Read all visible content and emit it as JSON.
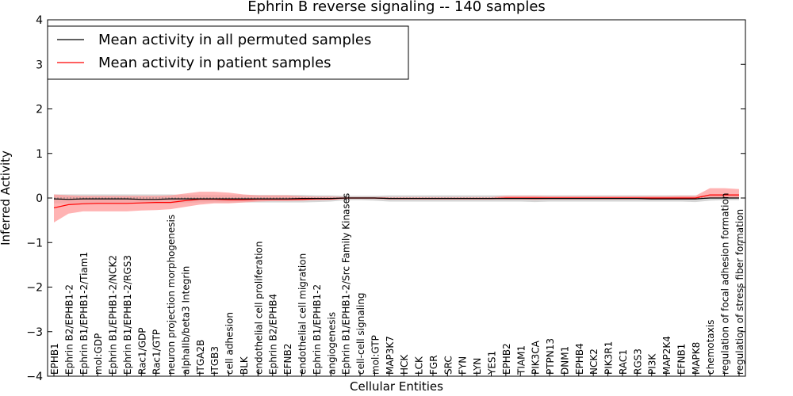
{
  "chart_data": {
    "type": "line",
    "title": "Ephrin B reverse signaling -- 140 samples",
    "xlabel": "Cellular Entities",
    "ylabel": "Inferred Activity",
    "ylim": [
      -4,
      4
    ],
    "yticks": [
      -4,
      -3,
      -2,
      -1,
      0,
      1,
      2,
      3,
      4
    ],
    "ytick_labels": [
      "−4",
      "−3",
      "−2",
      "−1",
      "0",
      "1",
      "2",
      "3",
      "4"
    ],
    "grid": false,
    "legend_position": "top-left",
    "categories": [
      "EPHB1",
      "Ephrin B2/EPHB1-2",
      "Ephrin B1/EPHB1-2/Tiam1",
      "mol:GDP",
      "Ephrin B1/EPHB1-2/NCK2",
      "Ephrin B1/EPHB1-2/RGS3",
      "Rac1/GDP",
      "Rac1/GTP",
      "neuron projection morphogenesis",
      "alphaIIb/beta3 Integrin",
      "ITGA2B",
      "ITGB3",
      "cell adhesion",
      "BLK",
      "endothelial cell proliferation",
      "Ephrin B2/EPHB4",
      "EFNB2",
      "endothelial cell migration",
      "Ephrin B1/EPHB1-2",
      "angiogenesis",
      "Ephrin B1/EPHB1-2/Src Family Kinases",
      "cell-cell signaling",
      "mol:GTP",
      "MAP3K7",
      "HCK",
      "LCK",
      "FGR",
      "SRC",
      "FYN",
      "LYN",
      "YES1",
      "EPHB2",
      "TIAM1",
      "PIK3CA",
      "PTPN13",
      "DNM1",
      "EPHB4",
      "NCK2",
      "PIK3R1",
      "RAC1",
      "RGS3",
      "PI3K",
      "MAP2K4",
      "EFNB1",
      "MAPK8",
      "chemotaxis",
      "regulation of focal adhesion formation",
      "regulation of stress fiber formation"
    ],
    "series": [
      {
        "name": "Mean activity in all permuted samples",
        "color": "#000000",
        "values": [
          -0.02,
          -0.03,
          -0.02,
          -0.02,
          -0.02,
          -0.02,
          -0.03,
          -0.03,
          -0.02,
          -0.02,
          -0.02,
          -0.02,
          -0.02,
          -0.02,
          -0.02,
          -0.02,
          -0.02,
          -0.01,
          -0.01,
          -0.01,
          0.0,
          0.0,
          0.0,
          -0.01,
          -0.01,
          -0.01,
          -0.01,
          -0.01,
          -0.01,
          -0.01,
          -0.01,
          -0.01,
          -0.01,
          -0.01,
          -0.01,
          -0.01,
          -0.01,
          -0.01,
          -0.01,
          -0.01,
          -0.01,
          -0.02,
          -0.02,
          -0.02,
          -0.02,
          0.0,
          0.0,
          0.0
        ],
        "band_lower": [
          -0.12,
          -0.12,
          -0.12,
          -0.12,
          -0.12,
          -0.12,
          -0.12,
          -0.12,
          -0.12,
          -0.11,
          -0.1,
          -0.1,
          -0.1,
          -0.1,
          -0.1,
          -0.1,
          -0.1,
          -0.1,
          -0.09,
          -0.08,
          -0.05,
          -0.05,
          -0.06,
          -0.08,
          -0.08,
          -0.08,
          -0.08,
          -0.08,
          -0.08,
          -0.08,
          -0.08,
          -0.08,
          -0.08,
          -0.09,
          -0.08,
          -0.08,
          -0.08,
          -0.08,
          -0.08,
          -0.08,
          -0.08,
          -0.08,
          -0.08,
          -0.08,
          -0.09,
          -0.06,
          -0.05,
          -0.05
        ],
        "band_upper": [
          0.08,
          0.08,
          0.08,
          0.08,
          0.08,
          0.08,
          0.08,
          0.08,
          0.08,
          0.07,
          0.07,
          0.07,
          0.07,
          0.07,
          0.07,
          0.07,
          0.07,
          0.07,
          0.06,
          0.06,
          0.05,
          0.05,
          0.05,
          0.06,
          0.06,
          0.06,
          0.06,
          0.06,
          0.06,
          0.06,
          0.06,
          0.06,
          0.06,
          0.06,
          0.06,
          0.06,
          0.06,
          0.06,
          0.06,
          0.06,
          0.06,
          0.06,
          0.06,
          0.06,
          0.06,
          0.06,
          0.06,
          0.06
        ]
      },
      {
        "name": "Mean activity in patient samples",
        "color": "#ff0000",
        "values": [
          -0.22,
          -0.15,
          -0.13,
          -0.12,
          -0.12,
          -0.12,
          -0.11,
          -0.1,
          -0.1,
          -0.06,
          -0.03,
          -0.03,
          -0.04,
          -0.04,
          -0.03,
          -0.03,
          -0.03,
          -0.03,
          -0.02,
          -0.02,
          0.0,
          0.0,
          0.0,
          -0.01,
          -0.01,
          -0.01,
          -0.01,
          -0.01,
          -0.01,
          -0.01,
          -0.01,
          0.0,
          0.0,
          0.0,
          0.0,
          0.0,
          0.0,
          0.0,
          0.0,
          0.0,
          0.0,
          0.0,
          0.0,
          0.0,
          0.0,
          0.07,
          0.07,
          0.07
        ],
        "band_lower": [
          -0.55,
          -0.35,
          -0.3,
          -0.3,
          -0.3,
          -0.3,
          -0.28,
          -0.27,
          -0.25,
          -0.2,
          -0.15,
          -0.12,
          -0.12,
          -0.1,
          -0.08,
          -0.07,
          -0.07,
          -0.06,
          -0.05,
          -0.04,
          -0.02,
          -0.02,
          -0.02,
          -0.03,
          -0.03,
          -0.03,
          -0.03,
          -0.03,
          -0.03,
          -0.03,
          -0.03,
          -0.03,
          -0.03,
          -0.04,
          -0.03,
          -0.03,
          -0.03,
          -0.03,
          -0.03,
          -0.03,
          -0.03,
          -0.03,
          -0.03,
          -0.03,
          -0.03,
          0.0,
          0.0,
          0.0
        ],
        "band_upper": [
          0.08,
          0.06,
          0.05,
          0.05,
          0.05,
          0.05,
          0.05,
          0.05,
          0.06,
          0.1,
          0.14,
          0.14,
          0.12,
          0.08,
          0.06,
          0.06,
          0.06,
          0.04,
          0.03,
          0.03,
          0.02,
          0.02,
          0.02,
          0.02,
          0.02,
          0.02,
          0.02,
          0.02,
          0.02,
          0.02,
          0.02,
          0.05,
          0.05,
          0.05,
          0.04,
          0.04,
          0.04,
          0.04,
          0.04,
          0.04,
          0.04,
          0.04,
          0.04,
          0.05,
          0.05,
          0.22,
          0.22,
          0.2
        ]
      }
    ],
    "baseline": 0,
    "colors": {
      "permuted_band": "#c8c8c8",
      "patient_band": "#ff9a9a",
      "axes": "#000000",
      "baseline": "#888888"
    }
  }
}
